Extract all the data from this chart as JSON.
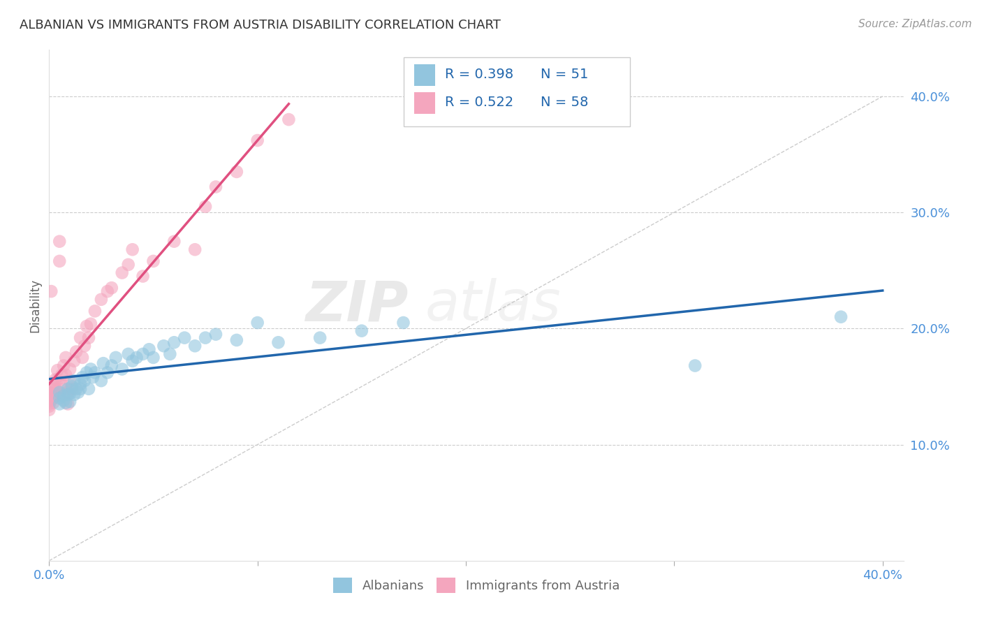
{
  "title": "ALBANIAN VS IMMIGRANTS FROM AUSTRIA DISABILITY CORRELATION CHART",
  "source": "Source: ZipAtlas.com",
  "ylabel": "Disability",
  "xlim": [
    0.0,
    0.41
  ],
  "ylim": [
    0.0,
    0.44
  ],
  "xticks": [
    0.0,
    0.1,
    0.2,
    0.3,
    0.4
  ],
  "yticks": [
    0.1,
    0.2,
    0.3,
    0.4
  ],
  "xticklabels": [
    "0.0%",
    "",
    "",
    "",
    "40.0%"
  ],
  "yticklabels": [
    "10.0%",
    "20.0%",
    "30.0%",
    "40.0%"
  ],
  "legend_r1": "R = 0.398",
  "legend_n1": "N = 51",
  "legend_r2": "R = 0.522",
  "legend_n2": "N = 58",
  "color_albanian": "#92c5de",
  "color_austria": "#f4a6be",
  "line_color_albanian": "#2166ac",
  "line_color_austria": "#e05080",
  "watermark_zip": "ZIP",
  "watermark_atlas": "atlas",
  "albanian_x": [
    0.005,
    0.005,
    0.005,
    0.007,
    0.007,
    0.008,
    0.009,
    0.009,
    0.01,
    0.01,
    0.011,
    0.012,
    0.012,
    0.013,
    0.014,
    0.015,
    0.015,
    0.016,
    0.017,
    0.018,
    0.019,
    0.02,
    0.021,
    0.022,
    0.025,
    0.026,
    0.028,
    0.03,
    0.032,
    0.035,
    0.038,
    0.04,
    0.042,
    0.045,
    0.048,
    0.05,
    0.055,
    0.058,
    0.06,
    0.065,
    0.07,
    0.075,
    0.08,
    0.09,
    0.1,
    0.11,
    0.13,
    0.15,
    0.17,
    0.31,
    0.38
  ],
  "albanian_y": [
    0.14,
    0.145,
    0.135,
    0.138,
    0.142,
    0.136,
    0.143,
    0.148,
    0.137,
    0.144,
    0.15,
    0.143,
    0.155,
    0.148,
    0.145,
    0.152,
    0.148,
    0.158,
    0.155,
    0.162,
    0.148,
    0.165,
    0.158,
    0.162,
    0.155,
    0.17,
    0.162,
    0.168,
    0.175,
    0.165,
    0.178,
    0.172,
    0.175,
    0.178,
    0.182,
    0.175,
    0.185,
    0.178,
    0.188,
    0.192,
    0.185,
    0.192,
    0.195,
    0.19,
    0.205,
    0.188,
    0.192,
    0.198,
    0.205,
    0.168,
    0.21
  ],
  "austria_x": [
    0.0,
    0.0,
    0.0,
    0.0,
    0.0,
    0.0,
    0.001,
    0.001,
    0.001,
    0.001,
    0.001,
    0.002,
    0.002,
    0.002,
    0.002,
    0.003,
    0.003,
    0.003,
    0.004,
    0.004,
    0.005,
    0.005,
    0.005,
    0.006,
    0.006,
    0.007,
    0.007,
    0.008,
    0.008,
    0.009,
    0.009,
    0.01,
    0.01,
    0.011,
    0.012,
    0.013,
    0.015,
    0.016,
    0.017,
    0.018,
    0.019,
    0.02,
    0.022,
    0.025,
    0.028,
    0.03,
    0.035,
    0.038,
    0.04,
    0.045,
    0.05,
    0.06,
    0.07,
    0.075,
    0.08,
    0.09,
    0.1,
    0.115
  ],
  "austria_y": [
    0.13,
    0.135,
    0.14,
    0.138,
    0.145,
    0.133,
    0.138,
    0.143,
    0.148,
    0.142,
    0.232,
    0.136,
    0.145,
    0.152,
    0.14,
    0.148,
    0.156,
    0.143,
    0.156,
    0.164,
    0.258,
    0.275,
    0.143,
    0.152,
    0.16,
    0.148,
    0.168,
    0.175,
    0.16,
    0.135,
    0.145,
    0.155,
    0.165,
    0.148,
    0.172,
    0.18,
    0.192,
    0.175,
    0.185,
    0.202,
    0.192,
    0.204,
    0.215,
    0.225,
    0.232,
    0.235,
    0.248,
    0.255,
    0.268,
    0.245,
    0.258,
    0.275,
    0.268,
    0.305,
    0.322,
    0.335,
    0.362,
    0.38
  ]
}
